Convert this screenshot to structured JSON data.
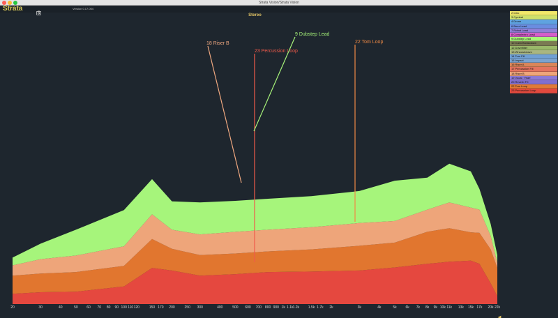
{
  "window": {
    "title": "Strata Vision/Strata Vision"
  },
  "app": {
    "name": "Strata",
    "version": "Version 0.17.004"
  },
  "panel": {
    "title": "Stereo"
  },
  "x_axis": {
    "ticks": [
      {
        "label": "20",
        "hz": 20
      },
      {
        "label": "30",
        "hz": 30
      },
      {
        "label": "40",
        "hz": 40
      },
      {
        "label": "50",
        "hz": 50
      },
      {
        "label": "60",
        "hz": 60
      },
      {
        "label": "70",
        "hz": 70
      },
      {
        "label": "80",
        "hz": 80
      },
      {
        "label": "90",
        "hz": 90
      },
      {
        "label": "100",
        "hz": 100
      },
      {
        "label": "110",
        "hz": 110
      },
      {
        "label": "120",
        "hz": 120
      },
      {
        "label": "150",
        "hz": 150
      },
      {
        "label": "170",
        "hz": 170
      },
      {
        "label": "200",
        "hz": 200
      },
      {
        "label": "250",
        "hz": 250
      },
      {
        "label": "300",
        "hz": 300
      },
      {
        "label": "400",
        "hz": 400
      },
      {
        "label": "500",
        "hz": 500
      },
      {
        "label": "600",
        "hz": 600
      },
      {
        "label": "700",
        "hz": 700
      },
      {
        "label": "800",
        "hz": 800
      },
      {
        "label": "900",
        "hz": 900
      },
      {
        "label": "1k",
        "hz": 1000
      },
      {
        "label": "1.1k",
        "hz": 1100
      },
      {
        "label": "1.2k",
        "hz": 1200
      },
      {
        "label": "1.5k",
        "hz": 1500
      },
      {
        "label": "1.7k",
        "hz": 1700
      },
      {
        "label": "2k",
        "hz": 2000
      },
      {
        "label": "3k",
        "hz": 3000
      },
      {
        "label": "4k",
        "hz": 4000
      },
      {
        "label": "5k",
        "hz": 5000
      },
      {
        "label": "6k",
        "hz": 6000
      },
      {
        "label": "7k",
        "hz": 7000
      },
      {
        "label": "8k",
        "hz": 8000
      },
      {
        "label": "9k",
        "hz": 9000
      },
      {
        "label": "10k",
        "hz": 10000
      },
      {
        "label": "11k",
        "hz": 11000
      },
      {
        "label": "13k",
        "hz": 13000
      },
      {
        "label": "15k",
        "hz": 15000
      },
      {
        "label": "17k",
        "hz": 17000
      },
      {
        "label": "20k",
        "hz": 20000
      },
      {
        "label": "22k",
        "hz": 22000
      }
    ]
  },
  "legend": {
    "items": [
      {
        "label": "2 Intro",
        "color": "#f2e86a"
      },
      {
        "label": "3 Cymbal",
        "color": "#cfe06a"
      },
      {
        "label": "4 Drone",
        "color": "#5fa3e0"
      },
      {
        "label": "6 Buzz Lead",
        "color": "#6a8de0"
      },
      {
        "label": "7 Robot Lead",
        "color": "#8f7fd6"
      },
      {
        "label": "8 Complextro Lead",
        "color": "#d35fc8"
      },
      {
        "label": "9 Dubstep Lead",
        "color": "#a8f57a"
      },
      {
        "label": "10 Calm Breakdown",
        "color": "#7a7a52"
      },
      {
        "label": "12 Downfilter",
        "color": "#9ab86a"
      },
      {
        "label": "13 Whooshdown",
        "color": "#a9b680"
      },
      {
        "label": "14 Tom Fill",
        "color": "#6f9fd4"
      },
      {
        "label": "15 Impact",
        "color": "#7aa3cf"
      },
      {
        "label": "16 Riser A",
        "color": "#d9865a"
      },
      {
        "label": "17 Percussion Fill",
        "color": "#e4735e"
      },
      {
        "label": "18 Riser B",
        "color": "#eea57a"
      },
      {
        "label": "19 Vocal: 'Yeah'",
        "color": "#8c7ad6"
      },
      {
        "label": "20 Reverb FX",
        "color": "#7f6fd0"
      },
      {
        "label": "22 Tom Loop",
        "color": "#e07a36"
      },
      {
        "label": "23 Percussion Loop",
        "color": "#e24a3e"
      }
    ]
  },
  "annotations": [
    {
      "label": "18 Riser B",
      "color": "#f0a880"
    },
    {
      "label": "23 Percussion Loop",
      "color": "#f05a4a"
    },
    {
      "label": "9 Dubstep Lead",
      "color": "#a8f57a"
    },
    {
      "label": "22 Tom Loop",
      "color": "#f08a45"
    }
  ],
  "chart_data": {
    "type": "area",
    "x_scale": "log",
    "x_range_hz": [
      20,
      22000
    ],
    "stacking": "stacked",
    "series": [
      {
        "name": "23 Percussion Loop",
        "color": "#e5483f",
        "points_hz": [
          20,
          30,
          50,
          100,
          150,
          200,
          300,
          500,
          800,
          1500,
          3000,
          5000,
          8000,
          11000,
          15000,
          17000,
          20000,
          22000
        ],
        "values": [
          20,
          23,
          24,
          34,
          70,
          65,
          55,
          58,
          62,
          63,
          65,
          71,
          78,
          82,
          84,
          78,
          40,
          15
        ]
      },
      {
        "name": "22 Tom Loop",
        "color": "#e1762f",
        "points_hz": [
          20,
          30,
          50,
          100,
          150,
          200,
          300,
          500,
          800,
          1500,
          3000,
          5000,
          8000,
          11000,
          15000,
          17000,
          20000,
          22000
        ],
        "values": [
          35,
          36,
          38,
          40,
          56,
          42,
          40,
          40,
          40,
          43,
          48,
          48,
          62,
          65,
          55,
          60,
          66,
          55
        ]
      },
      {
        "name": "18 Riser B",
        "color": "#eea57a",
        "points_hz": [
          20,
          30,
          50,
          100,
          150,
          200,
          300,
          500,
          800,
          1500,
          3000,
          5000,
          8000,
          11000,
          15000,
          17000,
          20000,
          22000
        ],
        "values": [
          20,
          28,
          32,
          38,
          48,
          37,
          40,
          42,
          42,
          43,
          44,
          42,
          43,
          50,
          48,
          45,
          26,
          10
        ]
      },
      {
        "name": "9 Dubstep Lead",
        "color": "#a6f57b",
        "points_hz": [
          20,
          30,
          50,
          100,
          150,
          200,
          300,
          500,
          800,
          1500,
          3000,
          5000,
          8000,
          11000,
          15000,
          17000,
          20000,
          22000
        ],
        "values": [
          15,
          30,
          50,
          70,
          68,
          55,
          62,
          60,
          60,
          60,
          62,
          78,
          62,
          75,
          70,
          40,
          23,
          15
        ]
      }
    ]
  }
}
